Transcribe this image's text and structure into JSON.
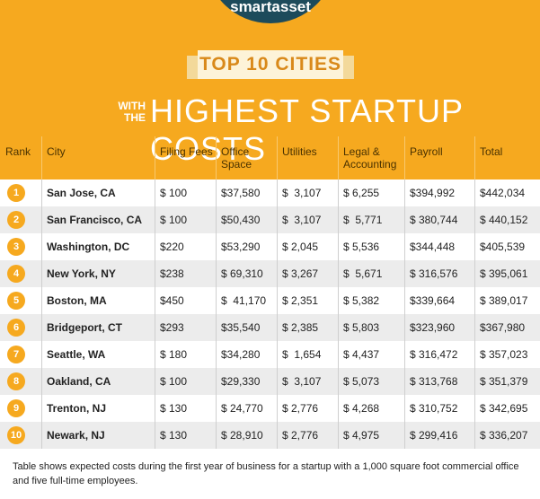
{
  "header": {
    "logo": "smartasset",
    "banner": "TOP 10 CITIES",
    "kicker": "WITH THE",
    "title": "HIGHEST STARTUP COSTS"
  },
  "table": {
    "columns": [
      "Rank",
      "City",
      "Filing Fees",
      "Office Space",
      "Utilities",
      "Legal & Accounting",
      "Payroll",
      "Total"
    ],
    "rows": [
      [
        "1",
        "San Jose, CA",
        "$ 100",
        "$37,580",
        "$  3,107",
        "$ 6,255",
        "$394,992",
        "$442,034"
      ],
      [
        "2",
        "San Francisco, CA",
        "$ 100",
        "$50,430",
        "$  3,107",
        "$  5,771",
        "$ 380,744",
        "$ 440,152"
      ],
      [
        "3",
        "Washington, DC",
        "$220",
        "$53,290",
        "$ 2,045",
        "$ 5,536",
        "$344,448",
        "$405,539"
      ],
      [
        "4",
        "New York, NY",
        "$238",
        "$ 69,310",
        "$ 3,267",
        "$  5,671",
        "$ 316,576",
        "$ 395,061"
      ],
      [
        "5",
        "Boston, MA",
        "$450",
        "$  41,170",
        "$ 2,351",
        "$ 5,382",
        "$339,664",
        "$ 389,017"
      ],
      [
        "6",
        "Bridgeport, CT",
        "$293",
        "$35,540",
        "$ 2,385",
        "$ 5,803",
        "$323,960",
        "$367,980"
      ],
      [
        "7",
        "Seattle, WA",
        "$ 180",
        "$34,280",
        "$  1,654",
        "$ 4,437",
        "$ 316,472",
        "$ 357,023"
      ],
      [
        "8",
        "Oakland, CA",
        "$ 100",
        "$29,330",
        "$  3,107",
        "$ 5,073",
        "$ 313,768",
        "$ 351,379"
      ],
      [
        "9",
        "Trenton, NJ",
        "$ 130",
        "$ 24,770",
        "$ 2,776",
        "$ 4,268",
        "$ 310,752",
        "$ 342,695"
      ],
      [
        "10",
        "Newark, NJ",
        "$ 130",
        "$ 28,910",
        "$ 2,776",
        "$ 4,975",
        "$ 299,416",
        "$ 336,207"
      ]
    ]
  },
  "footer": {
    "note": "Table shows expected costs during the first year of business for a startup with a 1,000 square foot commercial office and five full-time employees."
  }
}
